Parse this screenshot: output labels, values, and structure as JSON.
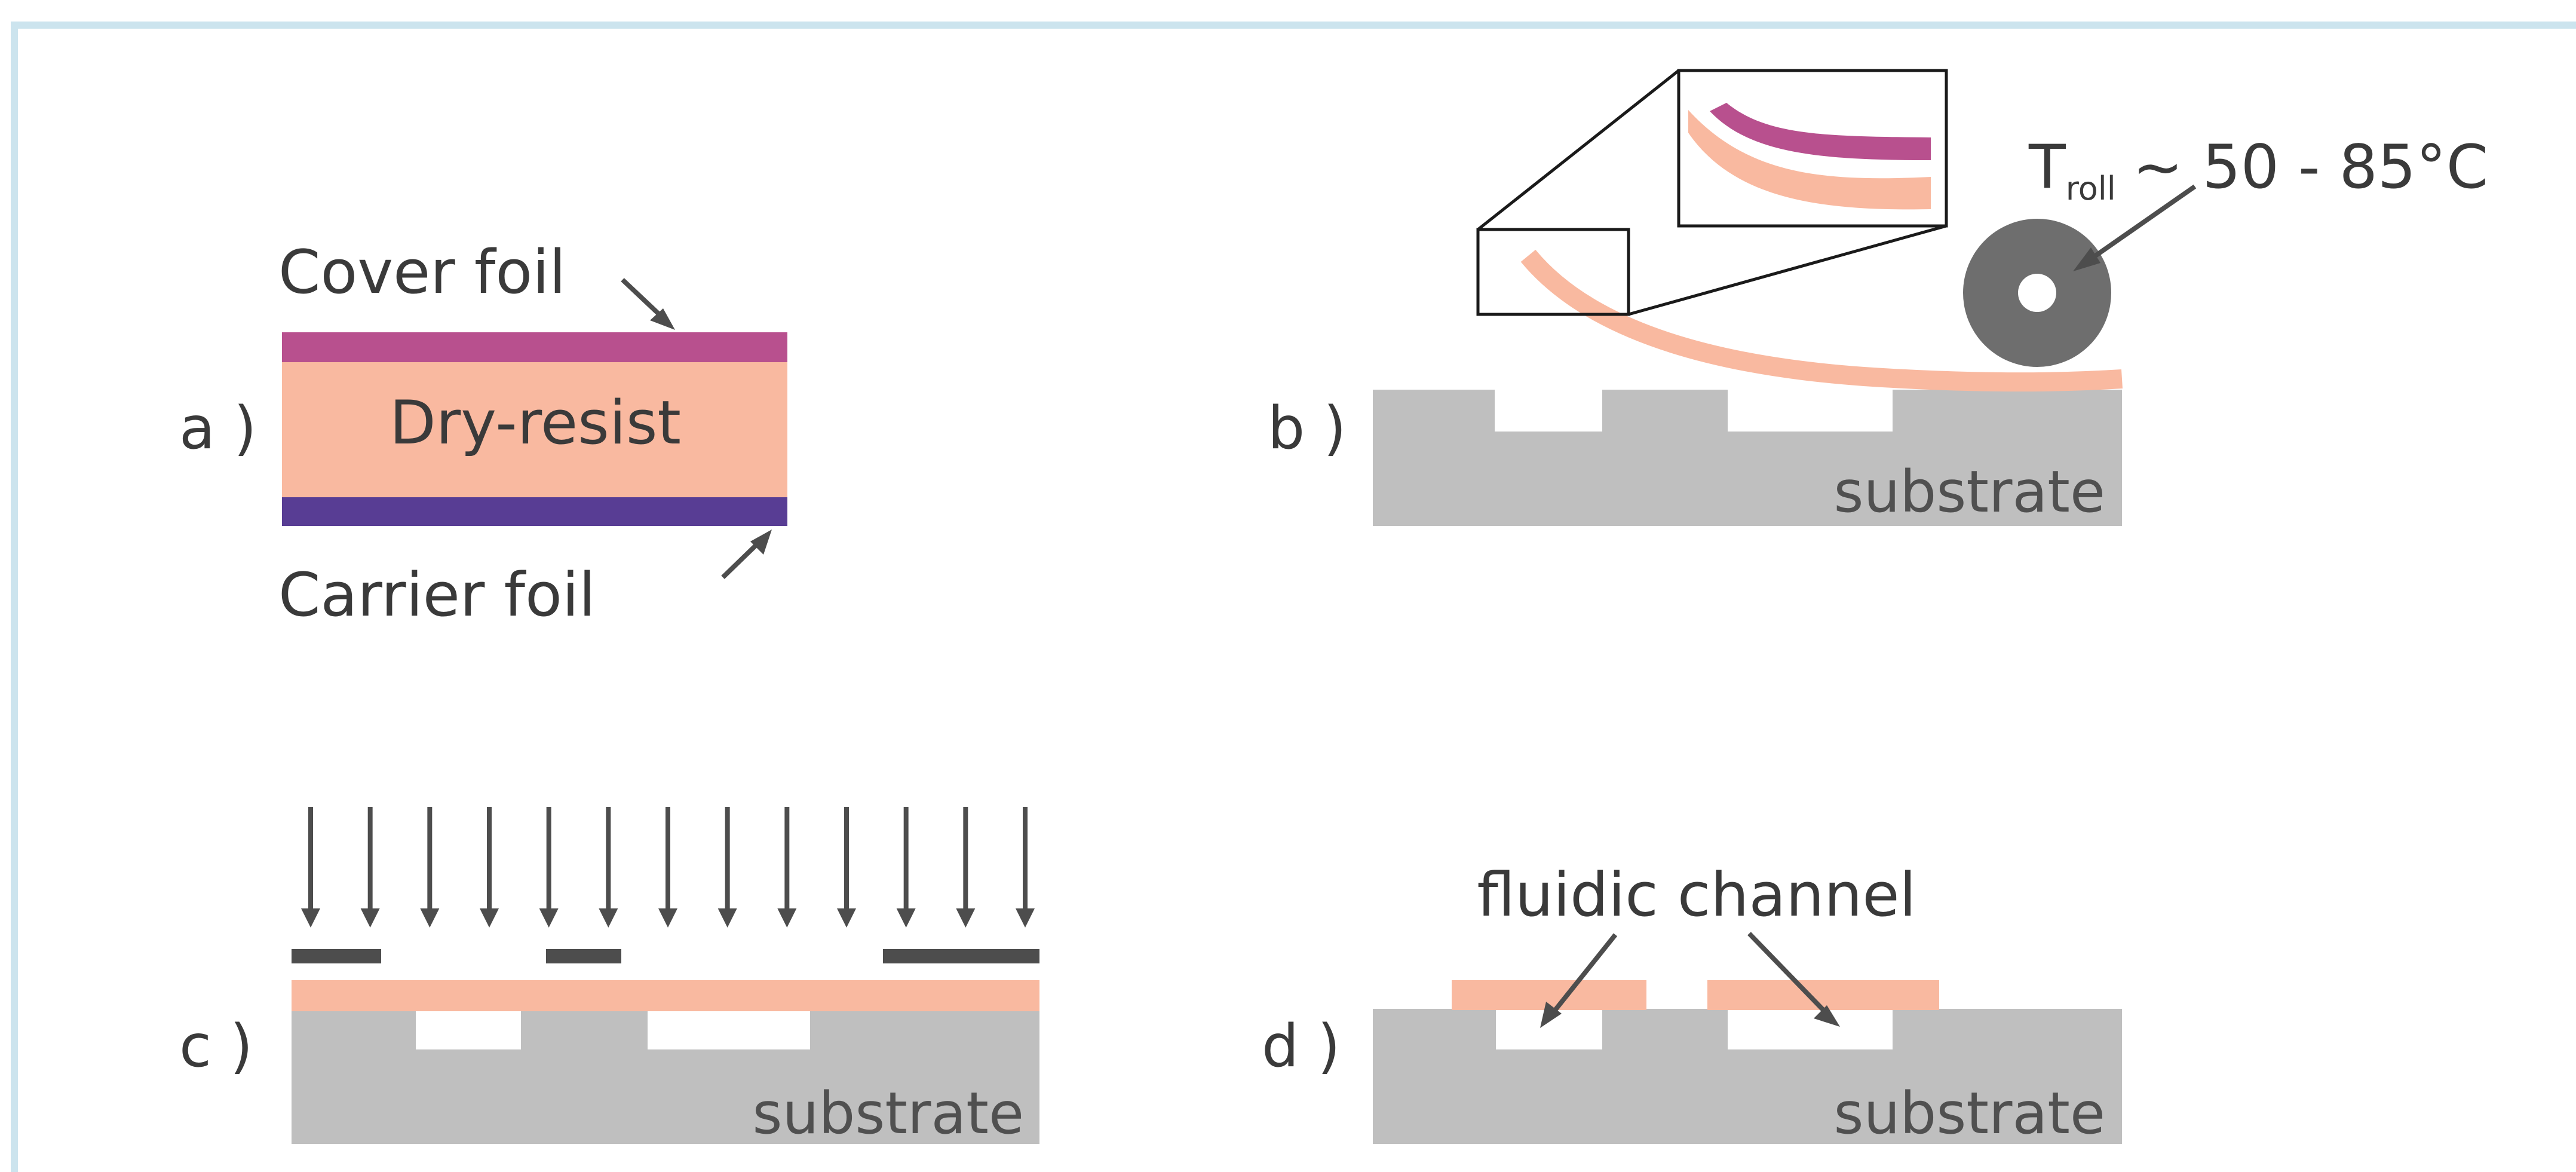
{
  "colors": {
    "frame_border": "#cce4ee",
    "cover_foil": "#b8508e",
    "dry_resist": "#f9b9a0",
    "carrier_foil": "#583d94",
    "substrate": "#bfbfbf",
    "arrow": "#4d4d4d",
    "mask": "#4d4d4d",
    "roller": "#6e6e6e",
    "text": "#3a3a3a"
  },
  "panel_a": {
    "label": "a )",
    "cover_foil_label": "Cover foil",
    "dry_resist_label": "Dry-resist",
    "carrier_foil_label": "Carrier foil"
  },
  "panel_b": {
    "label": "b )",
    "temperature": {
      "symbol": "T",
      "subscript": "roll",
      "value": "~ 50 - 85°C"
    },
    "substrate_label": "substrate",
    "icons": [
      "roller-icon",
      "zoom-inset"
    ]
  },
  "panel_c": {
    "label": "c )",
    "substrate_label": "substrate",
    "exposure_arrow_count": 13
  },
  "panel_d": {
    "label": "d )",
    "channel_label": "fluidic channel",
    "substrate_label": "substrate"
  }
}
